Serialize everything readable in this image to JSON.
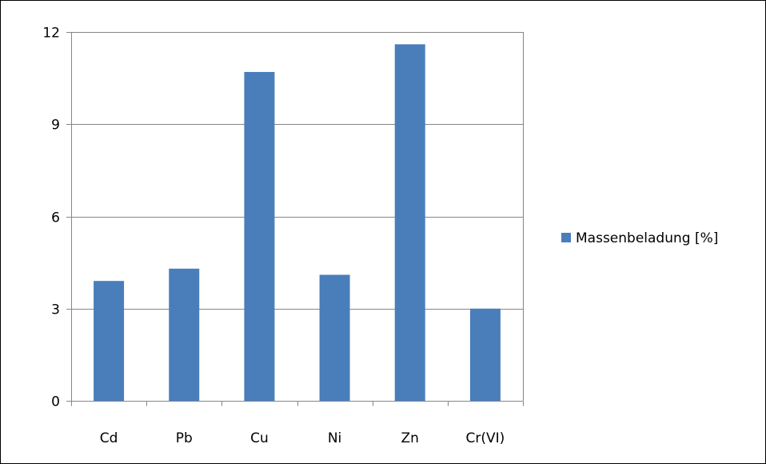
{
  "chart_data": {
    "type": "bar",
    "categories": [
      "Cd",
      "Pb",
      "Cu",
      "Ni",
      "Zn",
      "Cr(VI)"
    ],
    "series": [
      {
        "name": "Massenbeladung [%]",
        "values": [
          3.9,
          4.3,
          10.7,
          4.1,
          11.6,
          3.0
        ],
        "color": "#4A7EBB"
      }
    ],
    "title": "",
    "xlabel": "",
    "ylabel": "",
    "ylim": [
      0,
      12
    ],
    "yticks": [
      "0",
      "3",
      "6",
      "9",
      "12"
    ],
    "grid": true,
    "legend": "right"
  },
  "colors": {
    "bar": "#4A7EBB",
    "gridline": "#868686",
    "axis": "#868686",
    "plot_border": "#868686",
    "frame_border": "#000000"
  }
}
